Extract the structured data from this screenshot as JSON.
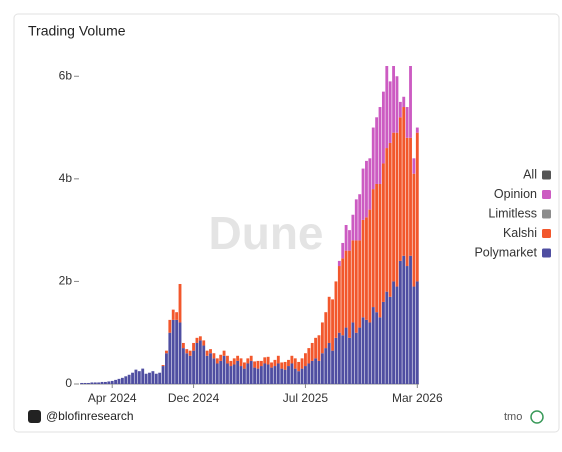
{
  "chart_data": {
    "type": "stacked-bar",
    "title": "Trading Volume",
    "watermark": "Dune",
    "footer": "@blofinresearch",
    "badge": "tmo",
    "categories": [
      null,
      null,
      null,
      null,
      null,
      null,
      null,
      null,
      null,
      "Apr 2024",
      null,
      null,
      null,
      null,
      null,
      null,
      null,
      null,
      null,
      null,
      null,
      null,
      null,
      null,
      null,
      null,
      null,
      null,
      null,
      null,
      null,
      null,
      null,
      "Dec 2024",
      null,
      null,
      null,
      null,
      null,
      null,
      null,
      null,
      null,
      null,
      null,
      null,
      null,
      null,
      null,
      null,
      null,
      null,
      null,
      null,
      null,
      null,
      null,
      null,
      null,
      null,
      null,
      null,
      null,
      null,
      null,
      null,
      "Jul 2025",
      null,
      null,
      null,
      null,
      null,
      null,
      null,
      null,
      null,
      null,
      null,
      null,
      null,
      null,
      null,
      null,
      null,
      null,
      null,
      null,
      null,
      null,
      null,
      null,
      null,
      null,
      null,
      null,
      null,
      null,
      null,
      null,
      "Mar 2026"
    ],
    "series": [
      {
        "name": "All",
        "color": "#555555",
        "values": [
          null,
          null,
          null,
          null,
          null,
          null,
          null,
          null,
          null,
          null,
          null,
          null,
          null,
          null,
          null,
          null,
          null,
          null,
          null,
          null,
          null,
          null,
          null,
          null,
          null,
          null,
          null,
          null,
          null,
          null,
          null,
          null,
          null,
          null,
          null,
          null,
          null,
          null,
          null,
          null,
          null,
          null,
          null,
          null,
          null,
          null,
          null,
          null,
          null,
          null,
          null,
          null,
          null,
          null,
          null,
          null,
          null,
          null,
          null,
          null,
          null,
          null,
          null,
          null,
          null,
          null,
          null,
          null,
          null,
          null,
          null,
          null,
          null,
          null,
          null,
          null,
          null,
          null,
          null,
          null,
          null,
          null,
          null,
          null,
          null,
          null,
          null,
          null,
          null,
          null,
          null,
          null,
          null,
          null,
          null,
          null,
          null,
          null,
          null,
          null
        ]
      },
      {
        "name": "Opinion",
        "color": "#cc5bc2",
        "values": [
          0,
          0,
          0,
          0,
          0,
          0,
          0,
          0,
          0,
          0,
          0,
          0,
          0,
          0,
          0,
          0,
          0,
          0,
          0,
          0,
          0,
          0,
          0,
          0,
          0,
          0,
          0,
          0,
          0,
          0,
          0,
          0,
          0,
          0,
          0,
          0,
          0,
          0,
          0,
          0,
          0,
          0,
          0,
          0,
          0,
          0,
          0,
          0,
          0,
          0,
          0,
          0,
          0,
          0,
          0,
          0,
          0,
          0,
          0,
          0,
          0,
          0,
          0,
          0,
          0,
          0,
          0,
          0,
          0,
          0,
          0,
          0,
          0,
          0,
          0,
          0,
          0.1,
          0.3,
          0.5,
          0.4,
          0.5,
          0.8,
          0.9,
          1.0,
          1.1,
          1.0,
          1.2,
          1.3,
          1.5,
          1.4,
          1.6,
          1.2,
          1.3,
          1.1,
          0.3,
          0.2,
          0.6,
          1.4,
          0.3,
          0.1
        ]
      },
      {
        "name": "Limitless",
        "color": "#8c8c8c",
        "values": [
          0,
          0,
          0,
          0,
          0,
          0,
          0,
          0,
          0,
          0,
          0,
          0,
          0,
          0,
          0,
          0,
          0,
          0,
          0,
          0,
          0,
          0,
          0,
          0,
          0,
          0,
          0,
          0,
          0,
          0,
          0,
          0,
          0,
          0,
          0,
          0,
          0,
          0,
          0,
          0,
          0,
          0,
          0,
          0,
          0,
          0,
          0,
          0,
          0,
          0,
          0,
          0,
          0,
          0,
          0,
          0,
          0,
          0,
          0,
          0,
          0,
          0,
          0,
          0,
          0,
          0,
          0,
          0,
          0,
          0,
          0,
          0,
          0,
          0,
          0,
          0,
          0,
          0,
          0,
          0,
          0,
          0,
          0,
          0,
          0,
          0,
          0,
          0,
          0,
          0,
          0,
          0,
          0,
          0,
          0,
          0,
          0,
          0,
          0,
          0
        ]
      },
      {
        "name": "Kalshi",
        "color": "#f2572c",
        "values": [
          0,
          0,
          0,
          0,
          0,
          0,
          0,
          0,
          0,
          0,
          0,
          0,
          0,
          0,
          0,
          0,
          0,
          0,
          0,
          0,
          0,
          0,
          0,
          0,
          0.02,
          0.05,
          0.25,
          0.2,
          0.15,
          0.75,
          0.1,
          0.08,
          0.1,
          0.15,
          0.1,
          0.08,
          0.1,
          0.1,
          0.08,
          0.1,
          0.1,
          0.12,
          0.1,
          0.15,
          0.1,
          0.12,
          0.1,
          0.15,
          0.12,
          0.1,
          0.1,
          0.12,
          0.15,
          0.1,
          0.12,
          0.15,
          0.1,
          0.12,
          0.15,
          0.12,
          0.15,
          0.12,
          0.15,
          0.2,
          0.18,
          0.2,
          0.25,
          0.3,
          0.35,
          0.4,
          0.5,
          0.6,
          0.7,
          0.9,
          1.0,
          1.1,
          1.3,
          1.5,
          1.5,
          1.7,
          1.6,
          1.8,
          1.7,
          1.9,
          2.0,
          2.2,
          2.3,
          2.5,
          2.6,
          2.7,
          2.8,
          3.0,
          2.9,
          3.0,
          2.8,
          2.9,
          2.5,
          2.3,
          2.2,
          2.9
        ]
      },
      {
        "name": "Polymarket",
        "color": "#4f4ea1",
        "values": [
          0.02,
          0.02,
          0.02,
          0.03,
          0.03,
          0.03,
          0.04,
          0.04,
          0.05,
          0.06,
          0.08,
          0.1,
          0.12,
          0.15,
          0.18,
          0.22,
          0.28,
          0.25,
          0.3,
          0.2,
          0.22,
          0.25,
          0.2,
          0.22,
          0.35,
          0.6,
          1.0,
          1.25,
          1.25,
          1.2,
          0.7,
          0.6,
          0.55,
          0.65,
          0.8,
          0.85,
          0.75,
          0.55,
          0.6,
          0.5,
          0.4,
          0.45,
          0.55,
          0.4,
          0.35,
          0.38,
          0.45,
          0.35,
          0.3,
          0.4,
          0.45,
          0.32,
          0.3,
          0.35,
          0.4,
          0.38,
          0.32,
          0.35,
          0.4,
          0.3,
          0.28,
          0.35,
          0.4,
          0.3,
          0.25,
          0.3,
          0.35,
          0.4,
          0.45,
          0.5,
          0.45,
          0.6,
          0.7,
          0.8,
          0.65,
          0.9,
          1.0,
          0.95,
          1.1,
          0.9,
          1.2,
          1.0,
          1.1,
          1.3,
          1.25,
          1.2,
          1.5,
          1.4,
          1.3,
          1.6,
          1.8,
          1.7,
          2.0,
          1.9,
          2.4,
          2.5,
          2.3,
          2.5,
          1.9,
          2.0
        ]
      }
    ],
    "ylim": [
      0,
      6.2
    ],
    "yticks": [
      0,
      {
        "value": 2,
        "label": "2b"
      },
      {
        "value": 4,
        "label": "4b"
      },
      {
        "value": 6,
        "label": "6b"
      }
    ]
  }
}
